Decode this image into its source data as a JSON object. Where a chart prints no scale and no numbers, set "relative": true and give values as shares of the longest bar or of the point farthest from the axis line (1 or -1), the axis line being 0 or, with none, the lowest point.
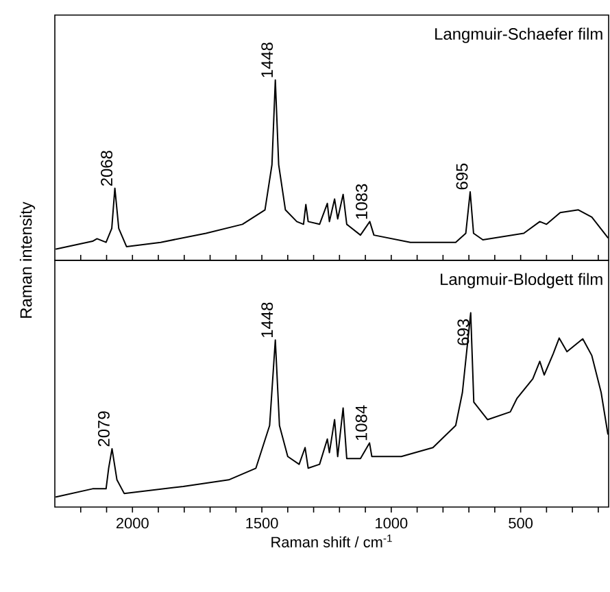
{
  "chart_data": [
    {
      "type": "line",
      "relative": true,
      "xlim": [
        2300,
        160
      ],
      "tick_labels": false,
      "ylabel": "Raman intensity",
      "series": [
        {
          "name": "Langmuir-Schaefer film",
          "color": "#000000",
          "x": [
            2295,
            2154,
            2137,
            2102,
            2080,
            2068,
            2053,
            2023,
            1891,
            1716,
            1575,
            1488,
            1461,
            1448,
            1435,
            1409,
            1365,
            1339,
            1330,
            1321,
            1277,
            1247,
            1239,
            1219,
            1207,
            1186,
            1172,
            1119,
            1083,
            1067,
            926,
            751,
            712,
            695,
            682,
            646,
            488,
            426,
            400,
            347,
            277,
            225,
            163
          ],
          "values": [
            0.063,
            0.106,
            0.12,
            0.1,
            0.177,
            0.4,
            0.177,
            0.076,
            0.1,
            0.15,
            0.2,
            0.28,
            0.53,
            1.0,
            0.53,
            0.28,
            0.215,
            0.2,
            0.31,
            0.215,
            0.2,
            0.316,
            0.215,
            0.34,
            0.23,
            0.366,
            0.2,
            0.14,
            0.215,
            0.14,
            0.1,
            0.1,
            0.15,
            0.38,
            0.15,
            0.114,
            0.15,
            0.215,
            0.2,
            0.265,
            0.28,
            0.24,
            0.126
          ]
        }
      ],
      "annotations": [
        {
          "text": "2068",
          "x": 2068,
          "y": 0.4
        },
        {
          "text": "1448",
          "x": 1448,
          "y": 1.0
        },
        {
          "text": "1083",
          "x": 1083,
          "y": 0.215
        },
        {
          "text": "695",
          "x": 695,
          "y": 0.38
        }
      ]
    },
    {
      "type": "line",
      "relative": true,
      "xlim": [
        2300,
        160
      ],
      "tick_labels": "x",
      "xlabel": "Raman shift / cm$^{-1}$",
      "xticks": [
        {
          "value": 2200,
          "label": null
        },
        {
          "value": 2100,
          "label": null
        },
        2000,
        {
          "value": 1900,
          "label": null
        },
        {
          "value": 1800,
          "label": null
        },
        {
          "value": 1700,
          "label": null
        },
        {
          "value": 1600,
          "label": null
        },
        1500,
        {
          "value": 1400,
          "label": null
        },
        {
          "value": 1300,
          "label": null
        },
        {
          "value": 1200,
          "label": null
        },
        {
          "value": 1100,
          "label": null
        },
        1000,
        {
          "value": 900,
          "label": null
        },
        {
          "value": 800,
          "label": null
        },
        {
          "value": 700,
          "label": null
        },
        {
          "value": 600,
          "label": null
        },
        500,
        {
          "value": 400,
          "label": null
        },
        {
          "value": 300,
          "label": null
        },
        {
          "value": 200,
          "label": null
        }
      ],
      "series": [
        {
          "name": "Langmuir-Blodgett film",
          "color": "#000000",
          "x": [
            2295,
            2154,
            2102,
            2092,
            2079,
            2060,
            2032,
            1804,
            1628,
            1523,
            1470,
            1448,
            1432,
            1400,
            1356,
            1333,
            1321,
            1277,
            1247,
            1239,
            1219,
            1207,
            1186,
            1172,
            1119,
            1084,
            1075,
            961,
            839,
            751,
            725,
            693,
            681,
            628,
            540,
            514,
            453,
            426,
            409,
            374,
            351,
            321,
            260,
            225,
            189,
            163
          ],
          "values": [
            0.052,
            0.094,
            0.094,
            0.2,
            0.3,
            0.14,
            0.07,
            0.106,
            0.14,
            0.2,
            0.42,
            0.86,
            0.42,
            0.26,
            0.22,
            0.306,
            0.2,
            0.22,
            0.35,
            0.28,
            0.45,
            0.26,
            0.51,
            0.25,
            0.25,
            0.33,
            0.26,
            0.26,
            0.306,
            0.42,
            0.59,
            1.0,
            0.54,
            0.45,
            0.49,
            0.56,
            0.66,
            0.75,
            0.68,
            0.79,
            0.87,
            0.8,
            0.866,
            0.78,
            0.59,
            0.376
          ]
        }
      ],
      "annotations": [
        {
          "text": "2079",
          "x": 2079,
          "y": 0.3
        },
        {
          "text": "1448",
          "x": 1448,
          "y": 0.86
        },
        {
          "text": "1084",
          "x": 1084,
          "y": 0.33
        },
        {
          "text": "693",
          "x": 693,
          "y": 1.0
        }
      ]
    }
  ]
}
